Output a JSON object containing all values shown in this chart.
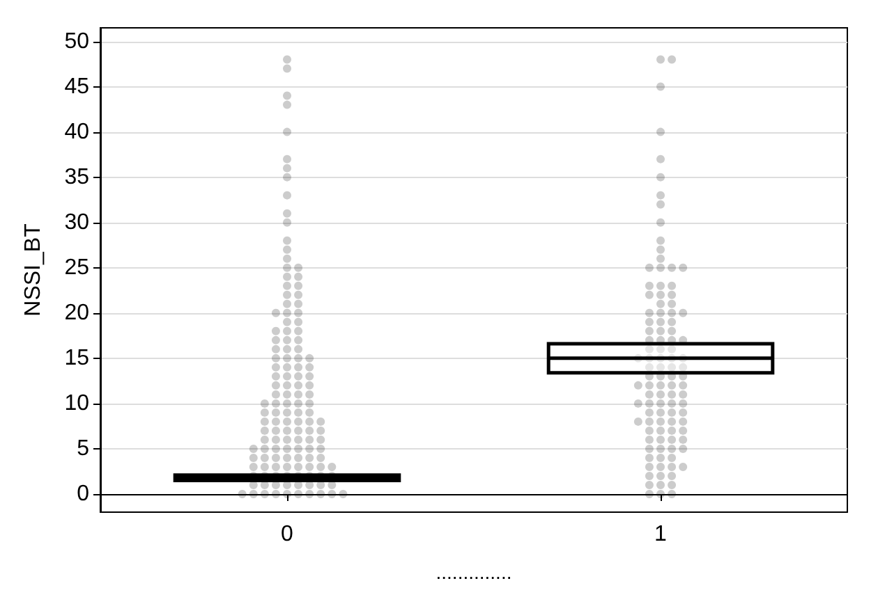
{
  "chart_data": {
    "type": "scatter",
    "ylabel": "NSSI_BT",
    "xlabel": "..............",
    "categories": [
      "0",
      "1"
    ],
    "ylim": [
      -2,
      51.5
    ],
    "yticks": [
      0,
      5,
      10,
      15,
      20,
      25,
      30,
      35,
      40,
      45,
      50
    ],
    "grid": "y",
    "series": [
      {
        "color": "#000000",
        "x": [
          "0",
          "0",
          "0",
          "0",
          "0",
          "0",
          "0",
          "0",
          "0",
          "0",
          "0",
          "0",
          "0",
          "0",
          "0",
          "0",
          "0",
          "0",
          "0",
          "0",
          "0",
          "0",
          "0",
          "0",
          "0",
          "0",
          "0",
          "0",
          "0",
          "0",
          "0",
          "0",
          "0",
          "0",
          "0",
          "0",
          "0",
          "0",
          "0",
          "0",
          "0",
          "0",
          "0",
          "0",
          "0",
          "0",
          "0",
          "0",
          "0",
          "0",
          "0",
          "0",
          "0",
          "0",
          "0",
          "0",
          "0",
          "0",
          "0",
          "0",
          "0",
          "0",
          "0",
          "0",
          "0",
          "0",
          "0",
          "0",
          "0",
          "0",
          "0",
          "0",
          "0",
          "0",
          "0",
          "0",
          "0",
          "0",
          "0",
          "0",
          "0",
          "0",
          "0",
          "0",
          "0",
          "0",
          "0",
          "0",
          "0",
          "0",
          "0",
          "0",
          "0",
          "0",
          "0",
          "0",
          "0",
          "0",
          "0",
          "0",
          "0",
          "0",
          "0",
          "0",
          "0",
          "0",
          "0",
          "0",
          "0",
          "0",
          "0",
          "0",
          "0",
          "0",
          "0",
          "0",
          "0",
          "0",
          "0",
          "0",
          "0",
          "0",
          "0",
          "0",
          "0",
          "0",
          "0",
          "0",
          "0",
          "0",
          "0",
          "0",
          "0",
          "0"
        ],
        "values": [
          0,
          0,
          0,
          0,
          0,
          0,
          0,
          0,
          0,
          0,
          1,
          1,
          1,
          1,
          1,
          1,
          1,
          1,
          2,
          2,
          2,
          2,
          2,
          2,
          2,
          2,
          3,
          3,
          3,
          3,
          3,
          3,
          3,
          3,
          4,
          4,
          4,
          4,
          4,
          4,
          4,
          5,
          5,
          5,
          5,
          5,
          5,
          5,
          6,
          6,
          6,
          6,
          6,
          6,
          7,
          7,
          7,
          7,
          7,
          7,
          8,
          8,
          8,
          8,
          8,
          8,
          9,
          9,
          9,
          9,
          9,
          10,
          10,
          10,
          10,
          10,
          11,
          11,
          11,
          11,
          12,
          12,
          12,
          12,
          13,
          13,
          13,
          13,
          14,
          14,
          14,
          14,
          15,
          15,
          15,
          15,
          16,
          16,
          16,
          17,
          17,
          17,
          18,
          18,
          18,
          19,
          19,
          20,
          20,
          20,
          21,
          21,
          22,
          22,
          23,
          23,
          24,
          24,
          25,
          25,
          26,
          27,
          28,
          30,
          31,
          33,
          35,
          36,
          37,
          40,
          43,
          44,
          47,
          48
        ]
      },
      {
        "color": "#000000",
        "x": [
          "1",
          "1",
          "1",
          "1",
          "1",
          "1",
          "1",
          "1",
          "1",
          "1",
          "1",
          "1",
          "1",
          "1",
          "1",
          "1",
          "1",
          "1",
          "1",
          "1",
          "1",
          "1",
          "1",
          "1",
          "1",
          "1",
          "1",
          "1",
          "1",
          "1",
          "1",
          "1",
          "1",
          "1",
          "1",
          "1",
          "1",
          "1",
          "1",
          "1",
          "1",
          "1",
          "1",
          "1",
          "1",
          "1",
          "1",
          "1",
          "1",
          "1",
          "1",
          "1",
          "1",
          "1",
          "1",
          "1",
          "1",
          "1",
          "1",
          "1",
          "1",
          "1",
          "1",
          "1",
          "1",
          "1",
          "1",
          "1",
          "1",
          "1",
          "1",
          "1",
          "1",
          "1",
          "1",
          "1",
          "1",
          "1",
          "1",
          "1",
          "1",
          "1",
          "1",
          "1",
          "1",
          "1",
          "1",
          "1",
          "1",
          "1",
          "1",
          "1",
          "1",
          "1",
          "1",
          "1",
          "1",
          "1",
          "1",
          "1",
          "1",
          "1",
          "1",
          "1",
          "1"
        ],
        "values": [
          0,
          0,
          0,
          1,
          1,
          1,
          2,
          2,
          2,
          3,
          3,
          3,
          3,
          4,
          4,
          4,
          5,
          5,
          5,
          5,
          6,
          6,
          6,
          6,
          7,
          7,
          7,
          7,
          8,
          8,
          8,
          8,
          8,
          9,
          9,
          9,
          9,
          10,
          10,
          10,
          10,
          10,
          11,
          11,
          11,
          11,
          12,
          12,
          12,
          12,
          12,
          13,
          13,
          13,
          13,
          14,
          14,
          14,
          14,
          15,
          15,
          15,
          15,
          15,
          16,
          16,
          16,
          17,
          17,
          17,
          17,
          18,
          18,
          18,
          19,
          19,
          19,
          20,
          20,
          20,
          20,
          21,
          21,
          22,
          22,
          22,
          23,
          23,
          23,
          25,
          25,
          25,
          25,
          26,
          27,
          28,
          30,
          32,
          33,
          35,
          37,
          40,
          45,
          48,
          48
        ]
      },
      {
        "type": "box",
        "color": "#000000",
        "boxes": [
          {
            "low": 1.5,
            "q1": 1.5,
            "median": 1.8,
            "q3": 2.1,
            "high": 2.1
          },
          {
            "low": 13.4,
            "q1": 13.4,
            "median": 15,
            "q3": 16.6,
            "high": 16.6
          }
        ]
      }
    ]
  }
}
